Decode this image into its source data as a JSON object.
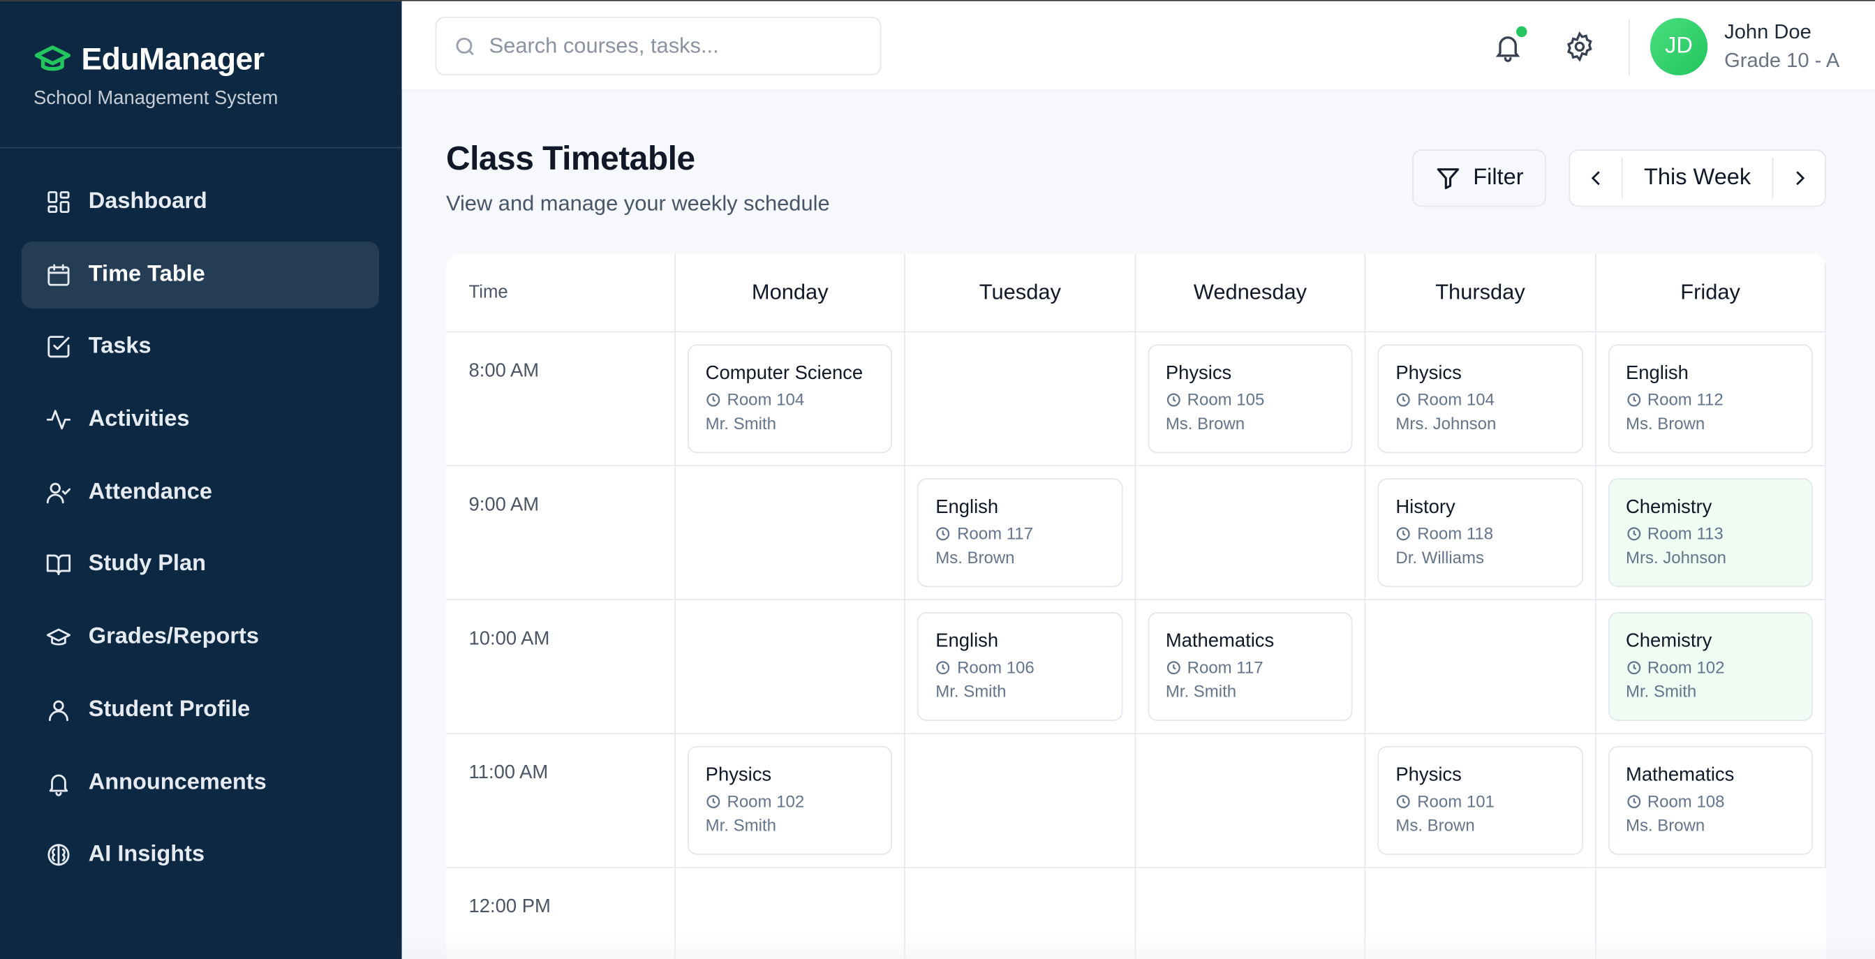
{
  "app": {
    "name": "EduManager",
    "subtitle": "School Management System",
    "accent": "#22c55e",
    "sidebar_bg": "#0d2842"
  },
  "sidebar": {
    "items": [
      {
        "label": "Dashboard",
        "icon": "dashboard-icon"
      },
      {
        "label": "Time Table",
        "icon": "calendar-icon",
        "active": true
      },
      {
        "label": "Tasks",
        "icon": "checkbox-icon"
      },
      {
        "label": "Activities",
        "icon": "activity-icon"
      },
      {
        "label": "Attendance",
        "icon": "user-check-icon"
      },
      {
        "label": "Study Plan",
        "icon": "book-open-icon"
      },
      {
        "label": "Grades/Reports",
        "icon": "graduation-cap-icon"
      },
      {
        "label": "Student Profile",
        "icon": "user-icon"
      },
      {
        "label": "Announcements",
        "icon": "bell-icon"
      },
      {
        "label": "AI Insights",
        "icon": "brain-icon"
      }
    ]
  },
  "header": {
    "search_placeholder": "Search courses, tasks...",
    "user": {
      "initials": "JD",
      "name": "John Doe",
      "grade": "Grade 10 - A"
    }
  },
  "page": {
    "title": "Class Timetable",
    "description": "View and manage your weekly schedule",
    "filter_label": "Filter",
    "week_label": "This Week"
  },
  "timetable": {
    "time_header": "Time",
    "days": [
      "Monday",
      "Tuesday",
      "Wednesday",
      "Thursday",
      "Friday"
    ],
    "rows": [
      {
        "time": "8:00 AM",
        "cells": [
          {
            "subject": "Computer Science",
            "room": "Room 104",
            "teacher": "Mr. Smith"
          },
          null,
          {
            "subject": "Physics",
            "room": "Room 105",
            "teacher": "Ms. Brown"
          },
          {
            "subject": "Physics",
            "room": "Room 104",
            "teacher": "Mrs. Johnson"
          },
          {
            "subject": "English",
            "room": "Room 112",
            "teacher": "Ms. Brown"
          }
        ]
      },
      {
        "time": "9:00 AM",
        "cells": [
          null,
          {
            "subject": "English",
            "room": "Room 117",
            "teacher": "Ms. Brown"
          },
          null,
          {
            "subject": "History",
            "room": "Room 118",
            "teacher": "Dr. Williams"
          },
          {
            "subject": "Chemistry",
            "room": "Room 113",
            "teacher": "Mrs. Johnson",
            "highlight": true
          }
        ]
      },
      {
        "time": "10:00 AM",
        "cells": [
          null,
          {
            "subject": "English",
            "room": "Room 106",
            "teacher": "Mr. Smith"
          },
          {
            "subject": "Mathematics",
            "room": "Room 117",
            "teacher": "Mr. Smith"
          },
          null,
          {
            "subject": "Chemistry",
            "room": "Room 102",
            "teacher": "Mr. Smith",
            "highlight": true
          }
        ]
      },
      {
        "time": "11:00 AM",
        "cells": [
          {
            "subject": "Physics",
            "room": "Room 102",
            "teacher": "Mr. Smith"
          },
          null,
          null,
          {
            "subject": "Physics",
            "room": "Room 101",
            "teacher": "Ms. Brown"
          },
          {
            "subject": "Mathematics",
            "room": "Room 108",
            "teacher": "Ms. Brown"
          }
        ]
      },
      {
        "time": "12:00 PM",
        "cells": [
          null,
          null,
          null,
          null,
          null
        ]
      }
    ]
  }
}
